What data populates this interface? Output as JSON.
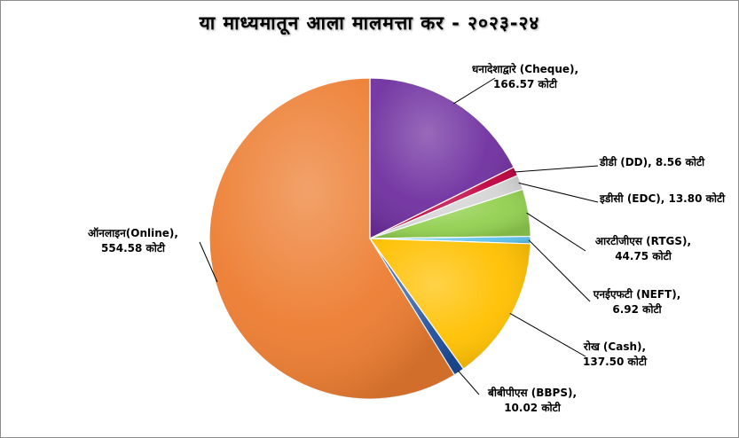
{
  "chart_data": {
    "type": "pie",
    "title": "या माध्यमातून आला मालमत्ता कर - २०२३-२४",
    "slices": [
      {
        "label_line1": "धनादेशाद्वारे (Cheque),",
        "label_line2": "166.57 कोटी",
        "value": 166.57,
        "color": "#7030a0"
      },
      {
        "label_line1": "डीडी (DD), 8.56 कोटी",
        "label_line2": "",
        "value": 8.56,
        "color": "#c00040"
      },
      {
        "label_line1": "इडीसी (EDC), 13.80 कोटी",
        "label_line2": "",
        "value": 13.8,
        "color": "#d4d4d4"
      },
      {
        "label_line1": "आरटीजीएस (RTGS),",
        "label_line2": "44.75 कोटी",
        "value": 44.75,
        "color": "#92d050"
      },
      {
        "label_line1": "एनईएफटी (NEFT),",
        "label_line2": "6.92 कोटी",
        "value": 6.92,
        "color": "#5bc0eb"
      },
      {
        "label_line1": "रोख (Cash),",
        "label_line2": "137.50 कोटी",
        "value": 137.5,
        "color": "#ffc000"
      },
      {
        "label_line1": "बीबीपीएस (BBPS),",
        "label_line2": "10.02 कोटी",
        "value": 10.02,
        "color": "#1f4e9c"
      },
      {
        "label_line1": "ऑनलाइन(Online),",
        "label_line2": "554.58 कोटी",
        "value": 554.58,
        "color": "#ed7d31"
      }
    ],
    "legend": "none"
  }
}
